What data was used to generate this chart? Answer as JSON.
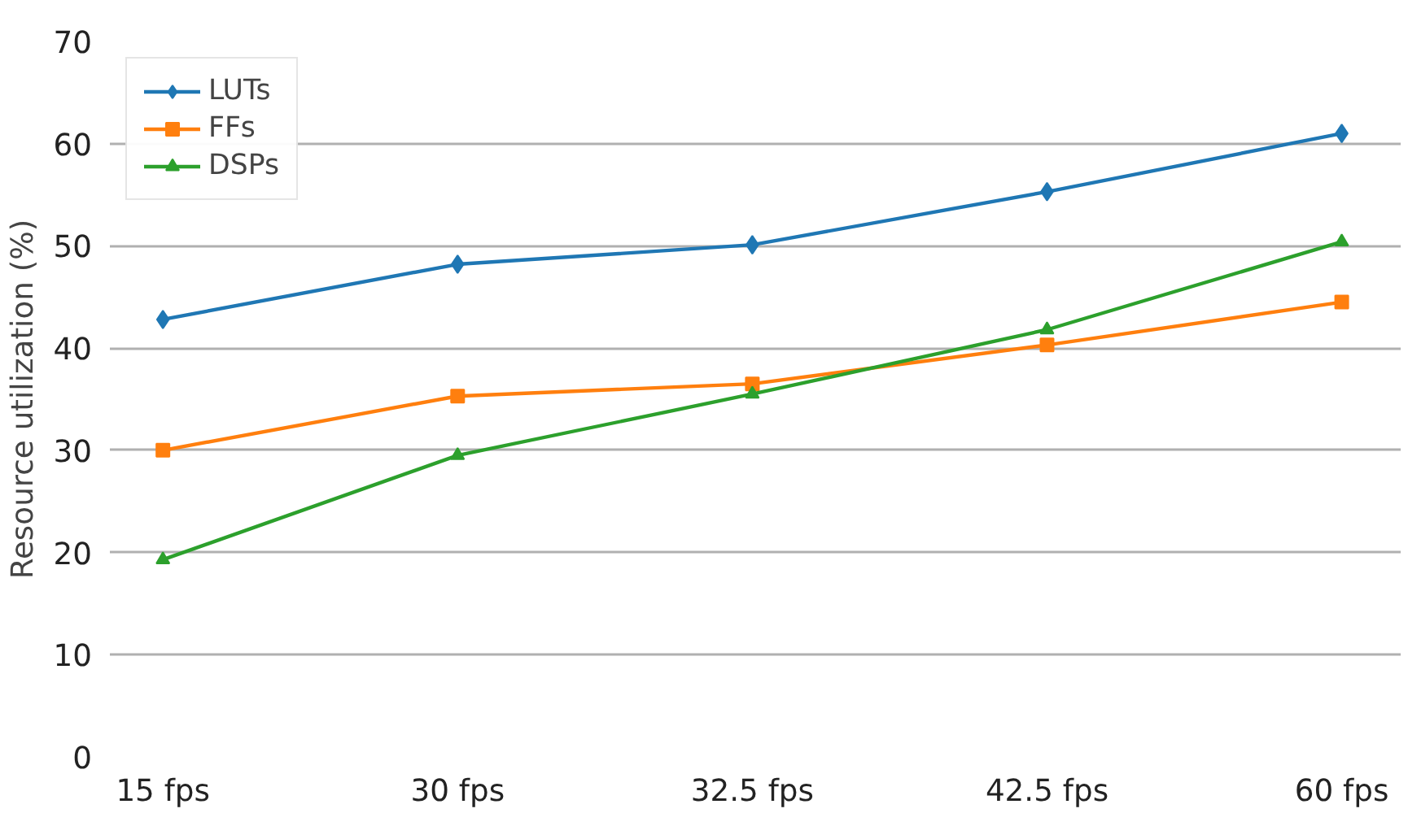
{
  "chart_data": {
    "type": "line",
    "ylabel": "Resource utilization (%)",
    "categories": [
      "15 fps",
      "30 fps",
      "32.5 fps",
      "42.5 fps",
      "60 fps"
    ],
    "series": [
      {
        "name": "LUTs",
        "color": "#1f77b4",
        "marker": "diamond",
        "values": [
          42.8,
          48.2,
          50.1,
          55.3,
          61.0
        ]
      },
      {
        "name": "FFs",
        "color": "#ff7f0e",
        "marker": "square",
        "values": [
          30.0,
          35.3,
          36.5,
          40.3,
          44.5
        ]
      },
      {
        "name": "DSPs",
        "color": "#2ca02c",
        "marker": "triangle",
        "values": [
          19.3,
          29.5,
          35.5,
          41.8,
          50.4
        ]
      }
    ],
    "ylim": [
      0,
      70
    ],
    "yticks": [
      0,
      10,
      20,
      30,
      40,
      50,
      60,
      70
    ],
    "grid": "y",
    "legend": "top left",
    "line_style": "solid"
  }
}
